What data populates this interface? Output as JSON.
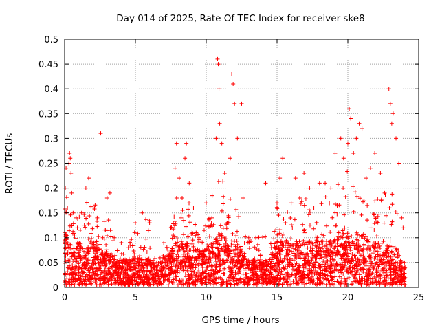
{
  "chart_data": {
    "type": "scatter",
    "title": "Day 014 of 2025, Rate Of TEC Index for receiver ske8",
    "xlabel": "GPS time / hours",
    "ylabel": "ROTI / TECUs",
    "xlim": [
      0,
      25
    ],
    "ylim": [
      0,
      0.5
    ],
    "xticks": [
      "0",
      "5",
      "10",
      "15",
      "20",
      "25"
    ],
    "yticks": [
      "0",
      "0.05",
      "0.1",
      "0.15",
      "0.2",
      "0.25",
      "0.3",
      "0.35",
      "0.4",
      "0.45",
      "0.5"
    ],
    "grid": true,
    "marker": "+",
    "color": "#ff0000",
    "series": [
      {
        "points": [
          [
            0.05,
            0.2
          ],
          [
            0.1,
            0.24
          ],
          [
            0.2,
            0.16
          ],
          [
            0.3,
            0.25
          ],
          [
            0.35,
            0.27
          ],
          [
            0.4,
            0.26
          ],
          [
            0.45,
            0.23
          ],
          [
            0.5,
            0.19
          ],
          [
            0.6,
            0.15
          ],
          [
            0.9,
            0.12
          ],
          [
            1.2,
            0.15
          ],
          [
            1.5,
            0.2
          ],
          [
            1.7,
            0.22
          ],
          [
            2.1,
            0.16
          ],
          [
            2.3,
            0.14
          ],
          [
            2.55,
            0.31
          ],
          [
            2.7,
            0.1
          ],
          [
            3.0,
            0.18
          ],
          [
            3.2,
            0.19
          ],
          [
            3.5,
            0.1
          ],
          [
            4.0,
            0.09
          ],
          [
            4.5,
            0.08
          ],
          [
            5.0,
            0.13
          ],
          [
            5.5,
            0.15
          ],
          [
            6.0,
            0.13
          ],
          [
            6.5,
            0.05
          ],
          [
            7.0,
            0.09
          ],
          [
            7.5,
            0.12
          ],
          [
            7.8,
            0.24
          ],
          [
            7.9,
            0.29
          ],
          [
            8.1,
            0.22
          ],
          [
            8.3,
            0.18
          ],
          [
            8.5,
            0.26
          ],
          [
            8.6,
            0.29
          ],
          [
            8.8,
            0.21
          ],
          [
            9.1,
            0.16
          ],
          [
            9.5,
            0.1
          ],
          [
            10.0,
            0.17
          ],
          [
            10.4,
            0.14
          ],
          [
            10.7,
            0.3
          ],
          [
            10.8,
            0.46
          ],
          [
            10.85,
            0.45
          ],
          [
            10.9,
            0.4
          ],
          [
            10.95,
            0.33
          ],
          [
            11.1,
            0.29
          ],
          [
            11.3,
            0.23
          ],
          [
            11.7,
            0.26
          ],
          [
            11.8,
            0.43
          ],
          [
            11.9,
            0.41
          ],
          [
            12.0,
            0.37
          ],
          [
            12.2,
            0.3
          ],
          [
            12.5,
            0.37
          ],
          [
            12.6,
            0.18
          ],
          [
            13.0,
            0.1
          ],
          [
            13.5,
            0.1
          ],
          [
            14.2,
            0.21
          ],
          [
            14.6,
            0.08
          ],
          [
            15.0,
            0.17
          ],
          [
            15.2,
            0.22
          ],
          [
            15.4,
            0.26
          ],
          [
            15.6,
            0.13
          ],
          [
            16.0,
            0.17
          ],
          [
            16.3,
            0.22
          ],
          [
            16.6,
            0.18
          ],
          [
            16.9,
            0.23
          ],
          [
            17.3,
            0.2
          ],
          [
            17.6,
            0.16
          ],
          [
            18.0,
            0.21
          ],
          [
            18.4,
            0.21
          ],
          [
            18.8,
            0.2
          ],
          [
            19.1,
            0.27
          ],
          [
            19.5,
            0.3
          ],
          [
            19.7,
            0.26
          ],
          [
            20.0,
            0.29
          ],
          [
            20.1,
            0.36
          ],
          [
            20.2,
            0.34
          ],
          [
            20.4,
            0.27
          ],
          [
            20.6,
            0.3
          ],
          [
            20.8,
            0.33
          ],
          [
            21.0,
            0.32
          ],
          [
            21.3,
            0.22
          ],
          [
            21.6,
            0.24
          ],
          [
            21.9,
            0.27
          ],
          [
            22.3,
            0.23
          ],
          [
            22.6,
            0.19
          ],
          [
            22.9,
            0.4
          ],
          [
            23.0,
            0.37
          ],
          [
            23.1,
            0.33
          ],
          [
            23.2,
            0.35
          ],
          [
            23.4,
            0.3
          ],
          [
            23.6,
            0.25
          ],
          [
            23.8,
            0.14
          ],
          [
            23.9,
            0.12
          ],
          [
            24.0,
            0.05
          ]
        ]
      }
    ],
    "dense_bands": [
      [
        0.0,
        0.06,
        0.2
      ],
      [
        0.5,
        0.04,
        0.14
      ],
      [
        1.0,
        0.05,
        0.16
      ],
      [
        1.5,
        0.04,
        0.17
      ],
      [
        2.0,
        0.05,
        0.17
      ],
      [
        2.5,
        0.04,
        0.15
      ],
      [
        3.0,
        0.04,
        0.15
      ],
      [
        3.5,
        0.03,
        0.1
      ],
      [
        4.0,
        0.03,
        0.09
      ],
      [
        4.5,
        0.03,
        0.08
      ],
      [
        5.0,
        0.03,
        0.12
      ],
      [
        5.5,
        0.03,
        0.14
      ],
      [
        6.0,
        0.03,
        0.13
      ],
      [
        6.5,
        0.02,
        0.05
      ],
      [
        7.0,
        0.03,
        0.08
      ],
      [
        7.5,
        0.04,
        0.11
      ],
      [
        8.0,
        0.05,
        0.19
      ],
      [
        8.5,
        0.05,
        0.2
      ],
      [
        9.0,
        0.04,
        0.15
      ],
      [
        9.5,
        0.04,
        0.1
      ],
      [
        10.0,
        0.04,
        0.13
      ],
      [
        10.5,
        0.05,
        0.2
      ],
      [
        11.0,
        0.06,
        0.24
      ],
      [
        11.5,
        0.05,
        0.16
      ],
      [
        12.0,
        0.05,
        0.2
      ],
      [
        12.5,
        0.04,
        0.13
      ],
      [
        13.0,
        0.03,
        0.1
      ],
      [
        13.5,
        0.03,
        0.1
      ],
      [
        14.0,
        0.03,
        0.12
      ],
      [
        14.5,
        0.03,
        0.08
      ],
      [
        15.0,
        0.05,
        0.16
      ],
      [
        15.5,
        0.05,
        0.16
      ],
      [
        16.0,
        0.05,
        0.16
      ],
      [
        16.5,
        0.05,
        0.16
      ],
      [
        17.0,
        0.05,
        0.18
      ],
      [
        17.5,
        0.05,
        0.15
      ],
      [
        18.0,
        0.05,
        0.19
      ],
      [
        18.5,
        0.05,
        0.18
      ],
      [
        19.0,
        0.05,
        0.19
      ],
      [
        19.5,
        0.06,
        0.22
      ],
      [
        20.0,
        0.06,
        0.23
      ],
      [
        20.5,
        0.05,
        0.2
      ],
      [
        21.0,
        0.06,
        0.2
      ],
      [
        21.5,
        0.05,
        0.15
      ],
      [
        22.0,
        0.05,
        0.2
      ],
      [
        22.5,
        0.04,
        0.18
      ],
      [
        23.0,
        0.05,
        0.2
      ],
      [
        23.5,
        0.04,
        0.15
      ],
      [
        24.0,
        0.02,
        0.05
      ]
    ]
  }
}
